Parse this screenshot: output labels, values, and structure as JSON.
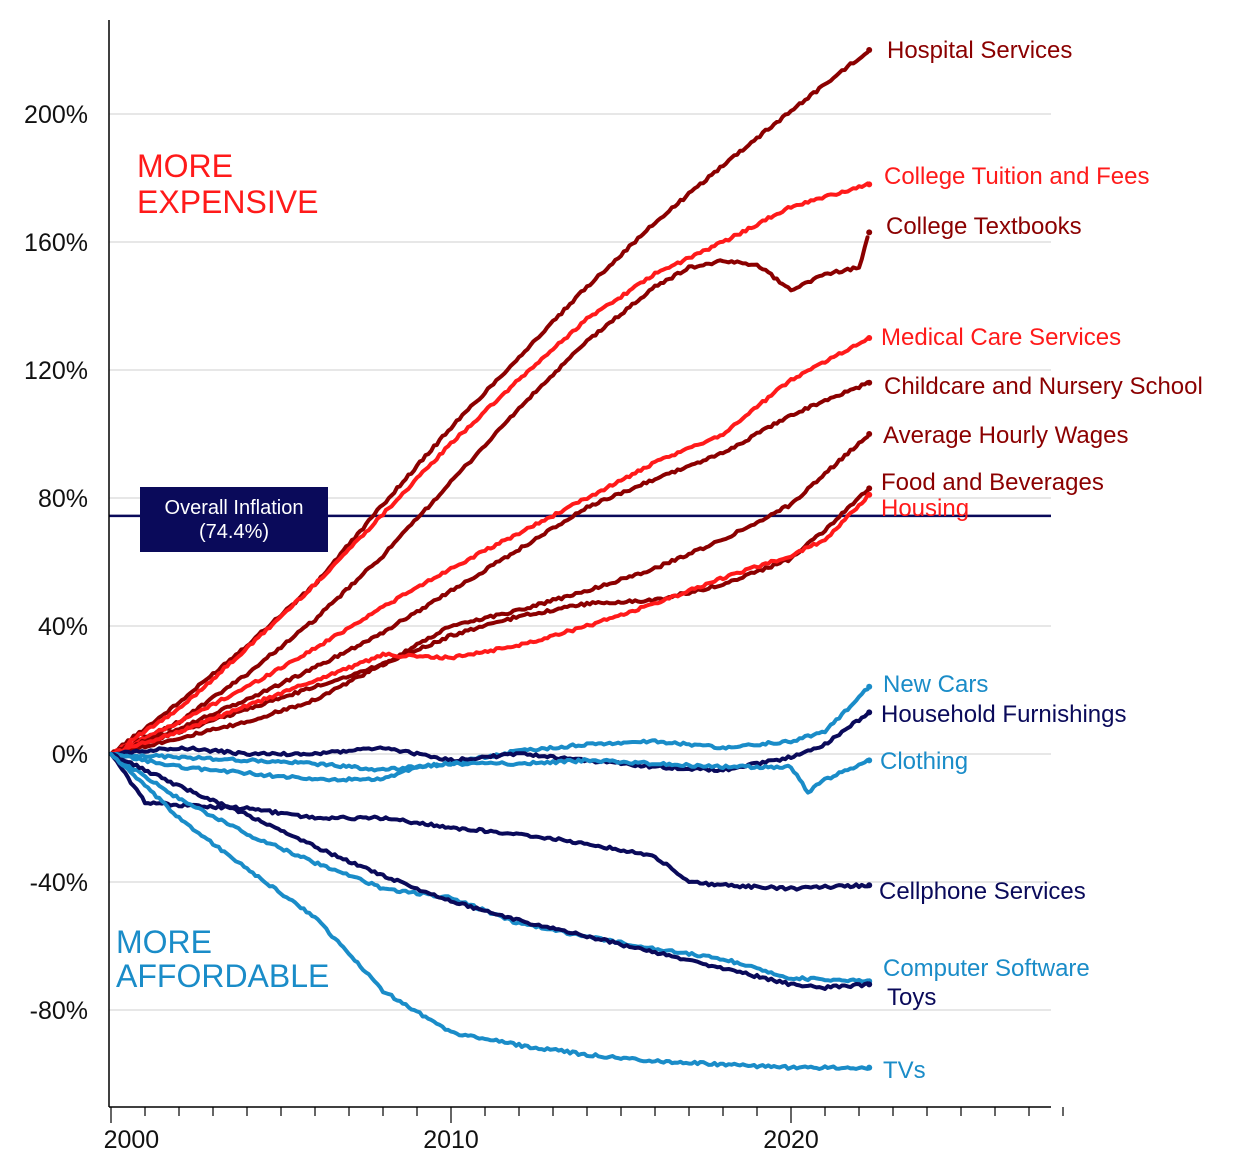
{
  "chart_data": {
    "type": "line",
    "title": "",
    "xlabel": "",
    "ylabel": "",
    "x_ticks": [
      "2000",
      "2010",
      "2020"
    ],
    "y_ticks": [
      "200%",
      "160%",
      "120%",
      "80%",
      "40%",
      "0%",
      "-40%",
      "-80%"
    ],
    "ylim": [
      -110,
      220
    ],
    "xlim": [
      2000,
      2028
    ],
    "grid": "horizontal",
    "annotations": {
      "more_expensive": [
        "MORE",
        "EXPENSIVE"
      ],
      "more_affordable": [
        "MORE",
        "AFFORDABLE"
      ],
      "overall_inflation": {
        "label_line1": "Overall Inflation",
        "label_line2": "(74.4%)",
        "value": 74.4
      }
    },
    "series": [
      {
        "name": "Hospital Services",
        "color": "#8b0000",
        "x": [
          2000,
          2002,
          2004,
          2006,
          2008,
          2010,
          2012,
          2014,
          2016,
          2018,
          2020,
          2022.3
        ],
        "y": [
          0,
          16,
          34,
          53,
          78,
          102,
          124,
          146,
          166,
          184,
          201,
          220
        ]
      },
      {
        "name": "College Tuition and Fees",
        "color": "#ff1a1a",
        "x": [
          2000,
          2002,
          2004,
          2006,
          2008,
          2010,
          2012,
          2014,
          2016,
          2018,
          2020,
          2022.3
        ],
        "y": [
          0,
          14,
          33,
          53,
          75,
          97,
          117,
          136,
          150,
          160,
          171,
          178
        ]
      },
      {
        "name": "College Textbooks",
        "color": "#8b0000",
        "x": [
          2000,
          2002,
          2004,
          2006,
          2008,
          2010,
          2012,
          2014,
          2016,
          2017,
          2018,
          2019,
          2020,
          2021,
          2022,
          2022.3
        ],
        "y": [
          0,
          10,
          25,
          42,
          62,
          85,
          108,
          129,
          146,
          152,
          154,
          153,
          145,
          150,
          152,
          163
        ]
      },
      {
        "name": "Medical Care Services",
        "color": "#ff1a1a",
        "x": [
          2000,
          2002,
          2004,
          2006,
          2008,
          2010,
          2012,
          2014,
          2016,
          2018,
          2020,
          2022.3
        ],
        "y": [
          0,
          10,
          21,
          33,
          46,
          58,
          69,
          80,
          91,
          100,
          117,
          130
        ]
      },
      {
        "name": "Childcare and Nursery School",
        "color": "#8b0000",
        "x": [
          2000,
          2002,
          2004,
          2006,
          2008,
          2010,
          2012,
          2014,
          2016,
          2018,
          2020,
          2022.3
        ],
        "y": [
          0,
          8,
          17,
          27,
          38,
          51,
          64,
          77,
          86,
          94,
          106,
          116
        ]
      },
      {
        "name": "Average Hourly Wages",
        "color": "#8b0000",
        "x": [
          2000,
          2002,
          2004,
          2006,
          2008,
          2010,
          2012,
          2014,
          2016,
          2018,
          2020,
          2022.3
        ],
        "y": [
          0,
          7,
          14,
          21,
          28,
          40,
          45,
          51,
          58,
          67,
          78,
          100
        ]
      },
      {
        "name": "Food and Beverages",
        "color": "#8b0000",
        "x": [
          2000,
          2002,
          2004,
          2006,
          2008,
          2010,
          2012,
          2014,
          2016,
          2018,
          2020,
          2021,
          2022.3
        ],
        "y": [
          0,
          5,
          10,
          17,
          28,
          37,
          43,
          47,
          48,
          53,
          61,
          70,
          83
        ]
      },
      {
        "name": "Housing",
        "color": "#ff1a1a",
        "x": [
          2000,
          2002,
          2004,
          2006,
          2008,
          2010,
          2012,
          2014,
          2016,
          2018,
          2020,
          2021,
          2022.3
        ],
        "y": [
          0,
          7,
          15,
          23,
          31,
          30,
          34,
          40,
          47,
          55,
          62,
          67,
          81
        ]
      },
      {
        "name": "New Cars",
        "color": "#1a8cc8",
        "x": [
          2000,
          2002,
          2004,
          2006,
          2008,
          2010,
          2012,
          2014,
          2016,
          2018,
          2020,
          2021,
          2022.3
        ],
        "y": [
          0,
          -1,
          -2,
          -3,
          -5,
          -3,
          1,
          3,
          4,
          2,
          4,
          7,
          21
        ]
      },
      {
        "name": "Household Furnishings",
        "color": "#0a0a5a",
        "x": [
          2000,
          2002,
          2004,
          2006,
          2008,
          2010,
          2012,
          2014,
          2016,
          2018,
          2020,
          2021,
          2022.3
        ],
        "y": [
          0,
          2,
          0,
          0,
          2,
          -2,
          0,
          -2,
          -4,
          -5,
          -1,
          3,
          13
        ]
      },
      {
        "name": "Clothing",
        "color": "#1a8cc8",
        "x": [
          2000,
          2002,
          2004,
          2006,
          2008,
          2009,
          2010,
          2012,
          2014,
          2016,
          2018,
          2020,
          2020.5,
          2021,
          2022.3
        ],
        "y": [
          0,
          -4,
          -6,
          -8,
          -8,
          -4,
          -3,
          -3,
          -2,
          -3,
          -4,
          -4,
          -12,
          -8,
          -2
        ]
      },
      {
        "name": "Cellphone Services",
        "color": "#0a0a5a",
        "x": [
          2000,
          2001,
          2002,
          2004,
          2006,
          2008,
          2010,
          2012,
          2014,
          2016,
          2017,
          2018,
          2020,
          2022.3
        ],
        "y": [
          0,
          -15,
          -16,
          -17,
          -20,
          -20,
          -23,
          -25,
          -28,
          -32,
          -40,
          -41,
          -42,
          -41
        ]
      },
      {
        "name": "Computer Software",
        "color": "#1a8cc8",
        "x": [
          2000,
          2002,
          2004,
          2006,
          2008,
          2010,
          2012,
          2014,
          2016,
          2018,
          2020,
          2022.3
        ],
        "y": [
          0,
          -14,
          -25,
          -34,
          -42,
          -45,
          -53,
          -57,
          -61,
          -64,
          -70,
          -71
        ]
      },
      {
        "name": "Toys",
        "color": "#0a0a5a",
        "x": [
          2000,
          2002,
          2004,
          2006,
          2008,
          2010,
          2012,
          2014,
          2016,
          2018,
          2020,
          2021,
          2022.3
        ],
        "y": [
          0,
          -10,
          -19,
          -29,
          -38,
          -46,
          -52,
          -57,
          -62,
          -67,
          -72,
          -73,
          -72
        ]
      },
      {
        "name": "TVs",
        "color": "#1a8cc8",
        "x": [
          2000,
          2002,
          2004,
          2006,
          2008,
          2010,
          2012,
          2014,
          2016,
          2018,
          2020,
          2022.3
        ],
        "y": [
          0,
          -20,
          -36,
          -51,
          -74,
          -87,
          -91,
          -94,
          -96,
          -97,
          -98,
          -98
        ]
      }
    ]
  }
}
